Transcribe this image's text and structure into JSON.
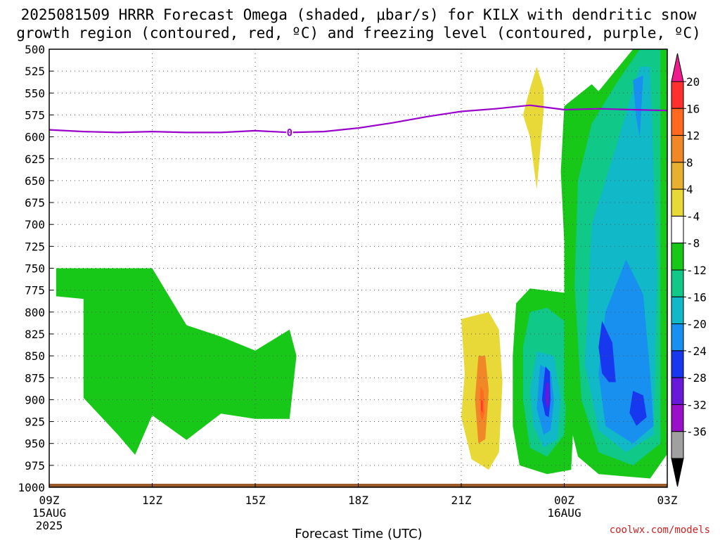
{
  "title_line1": "2025081509 HRRR Forecast Omega (shaded, μbar/s) for KILX with dendritic snow",
  "title_line2": "growth region (contoured, red, ºC) and freezing level (contoured, purple, ºC)",
  "credit": "coolwx.com/models",
  "chart_data": {
    "type": "heatmap",
    "xlabel": "Forecast Time (UTC)",
    "x_range_hours": [
      0,
      18
    ],
    "x_ticks": [
      {
        "hour": 0,
        "label": "09Z",
        "sub1": "15AUG",
        "sub2": "2025"
      },
      {
        "hour": 3,
        "label": "12Z",
        "sub1": "",
        "sub2": ""
      },
      {
        "hour": 6,
        "label": "15Z",
        "sub1": "",
        "sub2": ""
      },
      {
        "hour": 9,
        "label": "18Z",
        "sub1": "",
        "sub2": ""
      },
      {
        "hour": 12,
        "label": "21Z",
        "sub1": "",
        "sub2": ""
      },
      {
        "hour": 15,
        "label": "00Z",
        "sub1": "16AUG",
        "sub2": ""
      },
      {
        "hour": 18,
        "label": "03Z",
        "sub1": "",
        "sub2": ""
      }
    ],
    "y_range_mb": [
      500,
      1000
    ],
    "y_ticks": [
      "500",
      "525",
      "550",
      "575",
      "600",
      "625",
      "650",
      "675",
      "700",
      "725",
      "750",
      "775",
      "800",
      "825",
      "850",
      "875",
      "900",
      "925",
      "950",
      "975",
      "1000"
    ],
    "colorbar": {
      "labels": [
        "20",
        "16",
        "12",
        "8",
        "4",
        "-4",
        "-8",
        "-12",
        "-16",
        "-20",
        "-24",
        "-28",
        "-32",
        "-36"
      ],
      "bins": [
        {
          "color": "#ee1c8c"
        },
        {
          "color": "#ff3030"
        },
        {
          "color": "#ff6a20"
        },
        {
          "color": "#f08828"
        },
        {
          "color": "#e8b030"
        },
        {
          "color": "#e8d838"
        },
        {
          "color": "#ffffff"
        },
        {
          "color": "#18c818"
        },
        {
          "color": "#10c888"
        },
        {
          "color": "#10b8c8"
        },
        {
          "color": "#1890f0"
        },
        {
          "color": "#1838f0"
        },
        {
          "color": "#6818d8"
        },
        {
          "color": "#9810c8"
        },
        {
          "color": "#a0a0a0"
        },
        {
          "color": "#000000"
        }
      ]
    },
    "freezing_level": {
      "color": "#9900cc",
      "label": "0",
      "label_at": [
        7,
        595
      ],
      "points": [
        [
          0,
          592
        ],
        [
          1,
          594
        ],
        [
          2,
          595
        ],
        [
          3,
          594
        ],
        [
          4,
          595
        ],
        [
          5,
          595
        ],
        [
          6,
          593
        ],
        [
          7,
          595
        ],
        [
          8,
          594
        ],
        [
          9,
          590
        ],
        [
          10,
          584
        ],
        [
          11,
          577
        ],
        [
          12,
          571
        ],
        [
          13,
          568
        ],
        [
          14,
          564
        ],
        [
          15,
          569
        ],
        [
          16,
          568
        ],
        [
          17,
          569
        ],
        [
          18,
          570
        ]
      ]
    },
    "terrain_color": "#9a5a2a",
    "omega_regions": [
      {
        "value": -6,
        "color": "#18c818",
        "points": [
          [
            1.0,
            750
          ],
          [
            3.0,
            750
          ],
          [
            4.0,
            815
          ],
          [
            5.0,
            828
          ],
          [
            6.0,
            844
          ],
          [
            6.0,
            844
          ],
          [
            7.0,
            820
          ],
          [
            7.2,
            850
          ],
          [
            7.0,
            922
          ],
          [
            6.0,
            922
          ],
          [
            5.0,
            916
          ],
          [
            4.0,
            946
          ],
          [
            3.0,
            918
          ],
          [
            2.5,
            963
          ],
          [
            2.0,
            940
          ],
          [
            1.0,
            898
          ],
          [
            1.0,
            785
          ],
          [
            0.2,
            782
          ],
          [
            0.2,
            750
          ]
        ]
      },
      {
        "value": 5,
        "color": "#e8d838",
        "points": [
          [
            12.0,
            808
          ],
          [
            12.8,
            800
          ],
          [
            13.1,
            820
          ],
          [
            13.2,
            880
          ],
          [
            13.1,
            960
          ],
          [
            12.8,
            980
          ],
          [
            12.3,
            968
          ],
          [
            12.0,
            920
          ],
          [
            12.1,
            870
          ]
        ]
      },
      {
        "value": 9,
        "color": "#f08828",
        "points": [
          [
            12.5,
            850
          ],
          [
            12.7,
            850
          ],
          [
            12.8,
            890
          ],
          [
            12.7,
            945
          ],
          [
            12.5,
            950
          ],
          [
            12.4,
            900
          ]
        ]
      },
      {
        "value": 14,
        "color": "#ff6a20",
        "points": [
          [
            12.55,
            885
          ],
          [
            12.65,
            890
          ],
          [
            12.68,
            915
          ],
          [
            12.6,
            925
          ],
          [
            12.55,
            915
          ]
        ]
      },
      {
        "value": 18,
        "color": "#ff3030",
        "points": [
          [
            12.58,
            900
          ],
          [
            12.62,
            902
          ],
          [
            12.62,
            915
          ],
          [
            12.58,
            912
          ]
        ]
      },
      {
        "value": 5,
        "color": "#e8d838",
        "points": [
          [
            14.0,
            545
          ],
          [
            14.2,
            520
          ],
          [
            14.4,
            545
          ],
          [
            14.4,
            570
          ],
          [
            14.2,
            660
          ],
          [
            14.0,
            600
          ],
          [
            13.8,
            575
          ]
        ]
      },
      {
        "value": -6,
        "color": "#18c818",
        "points": [
          [
            13.6,
            790
          ],
          [
            14.0,
            773
          ],
          [
            15.0,
            778
          ],
          [
            15.2,
            800
          ],
          [
            15.3,
            900
          ],
          [
            15.2,
            980
          ],
          [
            14.5,
            985
          ],
          [
            13.7,
            975
          ],
          [
            13.5,
            930
          ],
          [
            13.5,
            850
          ]
        ]
      },
      {
        "value": -10,
        "color": "#10c888",
        "points": [
          [
            14.0,
            800
          ],
          [
            14.5,
            795
          ],
          [
            15.0,
            810
          ],
          [
            15.1,
            870
          ],
          [
            15.0,
            940
          ],
          [
            14.5,
            965
          ],
          [
            14.0,
            955
          ],
          [
            13.8,
            900
          ],
          [
            13.8,
            840
          ]
        ]
      },
      {
        "value": -14,
        "color": "#10b8c8",
        "points": [
          [
            14.2,
            845
          ],
          [
            14.7,
            850
          ],
          [
            14.9,
            900
          ],
          [
            14.8,
            945
          ],
          [
            14.4,
            955
          ],
          [
            14.1,
            930
          ],
          [
            14.0,
            890
          ]
        ]
      },
      {
        "value": -18,
        "color": "#1890f0",
        "points": [
          [
            14.3,
            860
          ],
          [
            14.6,
            868
          ],
          [
            14.7,
            900
          ],
          [
            14.6,
            935
          ],
          [
            14.4,
            940
          ],
          [
            14.2,
            910
          ]
        ]
      },
      {
        "value": -22,
        "color": "#1838f0",
        "points": [
          [
            14.45,
            862
          ],
          [
            14.58,
            868
          ],
          [
            14.6,
            900
          ],
          [
            14.55,
            920
          ],
          [
            14.45,
            918
          ],
          [
            14.35,
            900
          ]
        ]
      },
      {
        "value": -26,
        "color": "#6818d8",
        "points": [
          [
            14.48,
            880
          ],
          [
            14.56,
            882
          ],
          [
            14.56,
            905
          ],
          [
            14.5,
            910
          ],
          [
            14.45,
            898
          ]
        ]
      },
      {
        "value": -6,
        "color": "#18c818",
        "points": [
          [
            15.0,
            565
          ],
          [
            15.8,
            540
          ],
          [
            16.0,
            548
          ],
          [
            17.0,
            480
          ],
          [
            18.0,
            480
          ],
          [
            18.0,
            962
          ],
          [
            17.5,
            990
          ],
          [
            16.0,
            985
          ],
          [
            15.4,
            965
          ],
          [
            15.0,
            900
          ],
          [
            15.0,
            720
          ],
          [
            14.9,
            640
          ]
        ]
      },
      {
        "value": -10,
        "color": "#10c888",
        "points": [
          [
            15.8,
            585
          ],
          [
            16.5,
            540
          ],
          [
            17.2,
            500
          ],
          [
            17.8,
            500
          ],
          [
            17.8,
            680
          ],
          [
            17.8,
            950
          ],
          [
            17.0,
            975
          ],
          [
            16.0,
            960
          ],
          [
            15.5,
            900
          ],
          [
            15.3,
            770
          ],
          [
            15.4,
            650
          ]
        ]
      },
      {
        "value": -14,
        "color": "#10b8c8",
        "points": [
          [
            16.6,
            600
          ],
          [
            17.2,
            520
          ],
          [
            17.5,
            520
          ],
          [
            17.6,
            640
          ],
          [
            17.7,
            760
          ],
          [
            17.6,
            940
          ],
          [
            16.8,
            960
          ],
          [
            16.0,
            935
          ],
          [
            15.6,
            860
          ],
          [
            15.8,
            700
          ]
        ]
      },
      {
        "value": -18,
        "color": "#1890f0",
        "points": [
          [
            16.8,
            740
          ],
          [
            17.3,
            780
          ],
          [
            17.5,
            870
          ],
          [
            17.6,
            930
          ],
          [
            17.0,
            950
          ],
          [
            16.2,
            930
          ],
          [
            16.0,
            870
          ],
          [
            16.2,
            800
          ]
        ]
      },
      {
        "value": -18,
        "color": "#1890f0",
        "points": [
          [
            17.0,
            535
          ],
          [
            17.3,
            530
          ],
          [
            17.2,
            600
          ],
          [
            17.1,
            580
          ]
        ]
      },
      {
        "value": -22,
        "color": "#1838f0",
        "points": [
          [
            16.1,
            810
          ],
          [
            16.4,
            835
          ],
          [
            16.5,
            880
          ],
          [
            16.3,
            880
          ],
          [
            16.1,
            870
          ],
          [
            16.0,
            840
          ]
        ]
      },
      {
        "value": -22,
        "color": "#1838f0",
        "points": [
          [
            17.0,
            890
          ],
          [
            17.3,
            895
          ],
          [
            17.4,
            920
          ],
          [
            17.1,
            930
          ],
          [
            16.9,
            915
          ]
        ]
      }
    ]
  }
}
